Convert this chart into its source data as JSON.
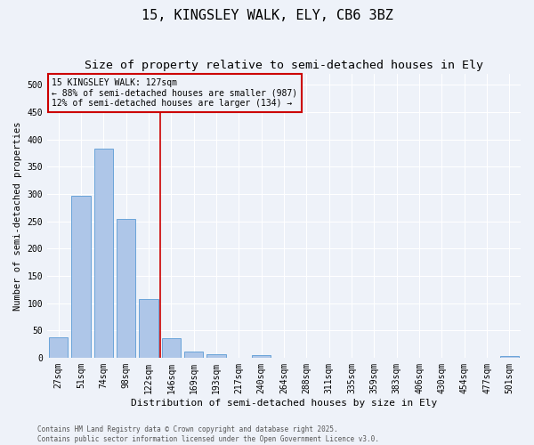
{
  "title1": "15, KINGSLEY WALK, ELY, CB6 3BZ",
  "title2": "Size of property relative to semi-detached houses in Ely",
  "xlabel": "Distribution of semi-detached houses by size in Ely",
  "ylabel": "Number of semi-detached properties",
  "footer1": "Contains HM Land Registry data © Crown copyright and database right 2025.",
  "footer2": "Contains public sector information licensed under the Open Government Licence v3.0.",
  "bar_labels": [
    "27sqm",
    "51sqm",
    "74sqm",
    "98sqm",
    "122sqm",
    "146sqm",
    "169sqm",
    "193sqm",
    "217sqm",
    "240sqm",
    "264sqm",
    "288sqm",
    "311sqm",
    "335sqm",
    "359sqm",
    "383sqm",
    "406sqm",
    "430sqm",
    "454sqm",
    "477sqm",
    "501sqm"
  ],
  "bar_values": [
    37,
    296,
    383,
    254,
    108,
    35,
    11,
    7,
    0,
    4,
    0,
    0,
    0,
    0,
    0,
    0,
    0,
    0,
    0,
    0,
    3
  ],
  "bar_color": "#aec6e8",
  "bar_edge_color": "#5b9bd5",
  "vline_x_index": 4,
  "vline_color": "#cc0000",
  "annotation_line1": "15 KINGSLEY WALK: 127sqm",
  "annotation_line2": "← 88% of semi-detached houses are smaller (987)",
  "annotation_line3": "12% of semi-detached houses are larger (134) →",
  "annotation_box_color": "#cc0000",
  "ylim": [
    0,
    520
  ],
  "yticks": [
    0,
    50,
    100,
    150,
    200,
    250,
    300,
    350,
    400,
    450,
    500
  ],
  "bg_color": "#eef2f9",
  "title_fontsize": 11,
  "subtitle_fontsize": 9.5,
  "tick_fontsize": 7,
  "ylabel_fontsize": 7.5,
  "xlabel_fontsize": 8
}
